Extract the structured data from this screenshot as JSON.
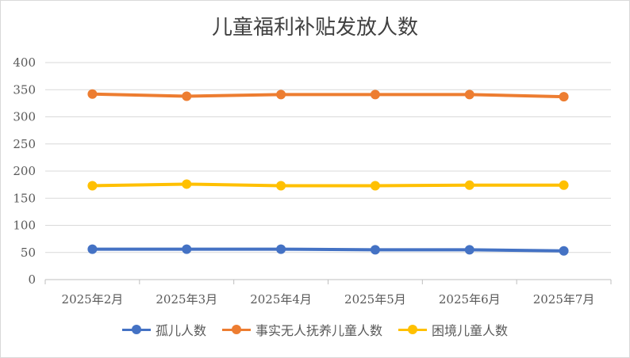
{
  "chart_data": {
    "type": "line",
    "title": "儿童福利补贴发放人数",
    "categories": [
      "2025年2月",
      "2025年3月",
      "2025年4月",
      "2025年5月",
      "2025年6月",
      "2025年7月"
    ],
    "ylim": [
      0,
      400
    ],
    "yticks": [
      "0",
      "50",
      "100",
      "150",
      "200",
      "250",
      "300",
      "350",
      "400"
    ],
    "grid": true,
    "legend_position": "bottom",
    "series": [
      {
        "name": "孤儿人数",
        "color": "#4472c4",
        "values": [
          56,
          56,
          56,
          55,
          55,
          53
        ]
      },
      {
        "name": "事实无人抚养儿童人数",
        "color": "#ed7d31",
        "values": [
          342,
          338,
          341,
          341,
          341,
          337
        ]
      },
      {
        "name": "困境儿童人数",
        "color": "#ffc000",
        "values": [
          173,
          176,
          173,
          173,
          174,
          174
        ]
      }
    ]
  }
}
